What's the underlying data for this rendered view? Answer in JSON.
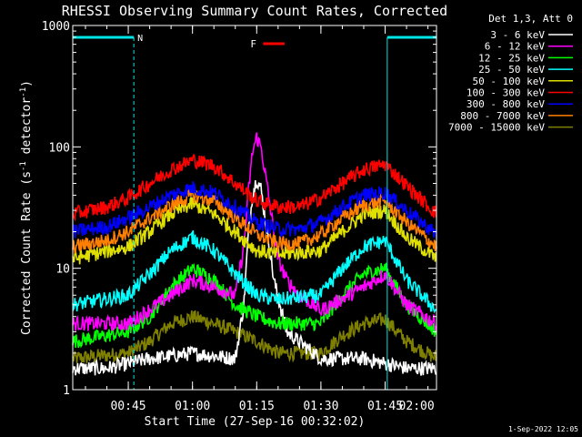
{
  "colors": {
    "background": "#000000",
    "axes": "#ffffff",
    "marker_cyan": "#00e5e5",
    "flare_red": "#ff0000"
  },
  "chart_data": {
    "type": "line",
    "title": "RHESSI Observing Summary Count Rates, Corrected",
    "xlabel": "Start Time (27-Sep-16 00:32:02)",
    "ylabel_main": "Corrected Count Rate (s",
    "ylabel_sup1": "-1",
    "ylabel_mid": " detector",
    "ylabel_sup2": "-1",
    "ylabel_end": ")",
    "yscale": "log",
    "ylim": [
      1,
      1000
    ],
    "xlim_minutes": [
      32.03,
      117
    ],
    "x_ticks": [
      {
        "label": "00:45",
        "minutes": 45
      },
      {
        "label": "01:00",
        "minutes": 60
      },
      {
        "label": "01:15",
        "minutes": 75
      },
      {
        "label": "01:30",
        "minutes": 90
      },
      {
        "label": "01:45",
        "minutes": 105
      },
      {
        "label": "02:00",
        "minutes": 120
      }
    ],
    "y_ticks": [
      {
        "label": "1",
        "value": 1
      },
      {
        "label": "10",
        "value": 10
      },
      {
        "label": "100",
        "value": 100
      },
      {
        "label": "1000",
        "value": 1000
      }
    ],
    "legend_header": "Det 1,3, Att 0",
    "legend_position": "top-right",
    "series": [
      {
        "name": "3 - 6 keV",
        "color": "#ffffff",
        "x": [
          32,
          40,
          50,
          60,
          70,
          72,
          73,
          74,
          75,
          76,
          77,
          78,
          79,
          82,
          90,
          100,
          110,
          117
        ],
        "values": [
          1.5,
          1.5,
          1.8,
          2.0,
          1.8,
          5,
          18,
          40,
          55,
          45,
          25,
          15,
          8,
          3,
          1.8,
          1.8,
          1.5,
          1.5
        ]
      },
      {
        "name": "6 - 12 keV",
        "color": "#ff00ff",
        "x": [
          32,
          45,
          55,
          60,
          65,
          70,
          72,
          73,
          74,
          75,
          76,
          77,
          78,
          79,
          80,
          82,
          85,
          90,
          100,
          105,
          110,
          117
        ],
        "values": [
          3.5,
          3.5,
          6,
          8,
          7,
          6,
          15,
          40,
          90,
          120,
          100,
          60,
          35,
          20,
          12,
          8,
          6,
          4.5,
          7,
          9,
          5,
          3.5
        ]
      },
      {
        "name": "12 - 25 keV",
        "color": "#00ff00",
        "x": [
          32,
          45,
          50,
          55,
          60,
          65,
          70,
          75,
          80,
          90,
          95,
          100,
          105,
          110,
          117
        ],
        "values": [
          2.5,
          3,
          4,
          7,
          10,
          8,
          5,
          4,
          3.5,
          3.5,
          6,
          9,
          10,
          5,
          3
        ]
      },
      {
        "name": "25 - 50 keV",
        "color": "#00ffff",
        "x": [
          32,
          45,
          50,
          55,
          60,
          65,
          70,
          75,
          80,
          90,
          95,
          100,
          105,
          110,
          117
        ],
        "values": [
          5,
          6,
          9,
          14,
          18,
          14,
          9,
          6,
          5.5,
          6,
          10,
          15,
          17,
          8,
          4.5
        ]
      },
      {
        "name": "50 - 100 keV",
        "color": "#e0e000",
        "x": [
          32,
          45,
          50,
          55,
          60,
          65,
          70,
          75,
          80,
          90,
          95,
          100,
          105,
          110,
          117
        ],
        "values": [
          12,
          15,
          20,
          28,
          34,
          28,
          20,
          14,
          13,
          14,
          20,
          28,
          30,
          18,
          12
        ]
      },
      {
        "name": "100 - 300 keV",
        "color": "#ff0000",
        "x": [
          32,
          40,
          45,
          50,
          55,
          60,
          65,
          70,
          75,
          80,
          85,
          90,
          95,
          100,
          105,
          110,
          117
        ],
        "values": [
          28,
          32,
          38,
          50,
          65,
          78,
          70,
          50,
          36,
          32,
          32,
          38,
          50,
          65,
          72,
          48,
          28
        ]
      },
      {
        "name": "300 - 800 keV",
        "color": "#0000ff",
        "x": [
          32,
          40,
          45,
          50,
          55,
          60,
          65,
          70,
          75,
          80,
          85,
          90,
          95,
          100,
          105,
          110,
          117
        ],
        "values": [
          20,
          22,
          26,
          32,
          40,
          46,
          42,
          32,
          24,
          21,
          21,
          24,
          32,
          40,
          42,
          30,
          19
        ]
      },
      {
        "name": "800 - 7000 keV",
        "color": "#ff8000",
        "x": [
          32,
          40,
          45,
          50,
          55,
          60,
          65,
          70,
          75,
          80,
          85,
          90,
          95,
          100,
          105,
          110,
          117
        ],
        "values": [
          15,
          17,
          20,
          26,
          33,
          40,
          36,
          26,
          19,
          16,
          16,
          19,
          26,
          33,
          36,
          24,
          15
        ]
      },
      {
        "name": "7000 - 15000 keV",
        "color": "#808000",
        "x": [
          32,
          45,
          50,
          55,
          60,
          65,
          70,
          75,
          80,
          90,
          95,
          100,
          105,
          110,
          117
        ],
        "values": [
          1.8,
          2.0,
          2.5,
          3.5,
          4.0,
          3.5,
          3.0,
          2.5,
          2.0,
          2.0,
          2.8,
          3.5,
          3.8,
          2.5,
          1.8
        ]
      }
    ],
    "markers": {
      "night_label": "N",
      "flare_label": "F",
      "night_intervals_minutes": [
        [
          32.03,
          46.3
        ],
        [
          105.5,
          117
        ]
      ],
      "flare_interval_minutes": [
        76.5,
        81.5
      ]
    },
    "grid": false
  },
  "footer": {
    "timestamp": "1-Sep-2022 12:05"
  }
}
